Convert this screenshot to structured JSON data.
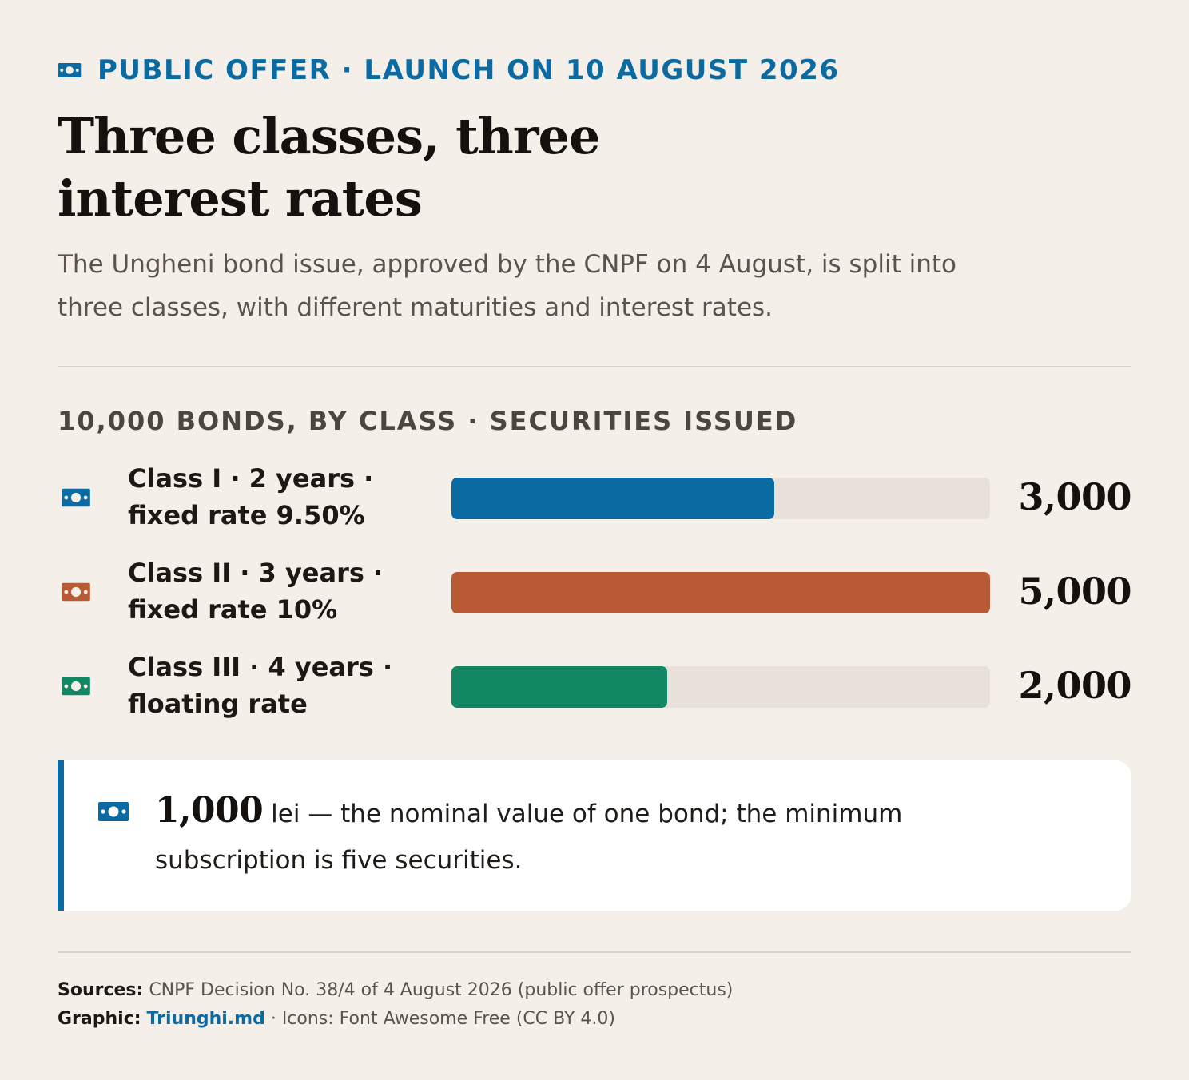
{
  "kicker": {
    "icon": "money-bill-icon",
    "text": "PUBLIC OFFER · LAUNCH ON 10 AUGUST 2026",
    "color": "#0a6aa1"
  },
  "headline": "Three classes, three interest rates",
  "dek": "The Ungheni bond issue, approved by the CNPF on 4 August, is split into three classes, with different maturities and interest rates.",
  "chart_data": {
    "type": "bar",
    "orientation": "horizontal",
    "title": "10,000 BONDS, BY CLASS · SECURITIES ISSUED",
    "categories": [
      "Class I · 2 years · fixed rate 9.50%",
      "Class II · 3 years · fixed rate 10%",
      "Class III · 4 years · floating rate"
    ],
    "values": [
      3000,
      5000,
      2000
    ],
    "value_labels": [
      "3,000",
      "5,000",
      "2,000"
    ],
    "xlim": [
      0,
      5000
    ],
    "colors": [
      "#0a6aa1",
      "#b95a35",
      "#118763"
    ],
    "track_color": "#e7e1d9",
    "grid": false,
    "legend": "none",
    "icon": "money-bill-icon"
  },
  "callout": {
    "icon": "money-bill-icon",
    "number": "1,000",
    "text": " lei — the nominal value of one bond; the minimum subscription is five securities.",
    "accent": "#0a6aa1"
  },
  "footer": {
    "sources_label": "Sources:",
    "sources_text": " CNPF Decision No. 38/4 of 4 August 2026 (public offer prospectus)",
    "graphic_label": "Graphic:",
    "graphic_link": "Triunghi.md",
    "graphic_rest": " · Icons: Font Awesome Free (CC BY 4.0)"
  }
}
